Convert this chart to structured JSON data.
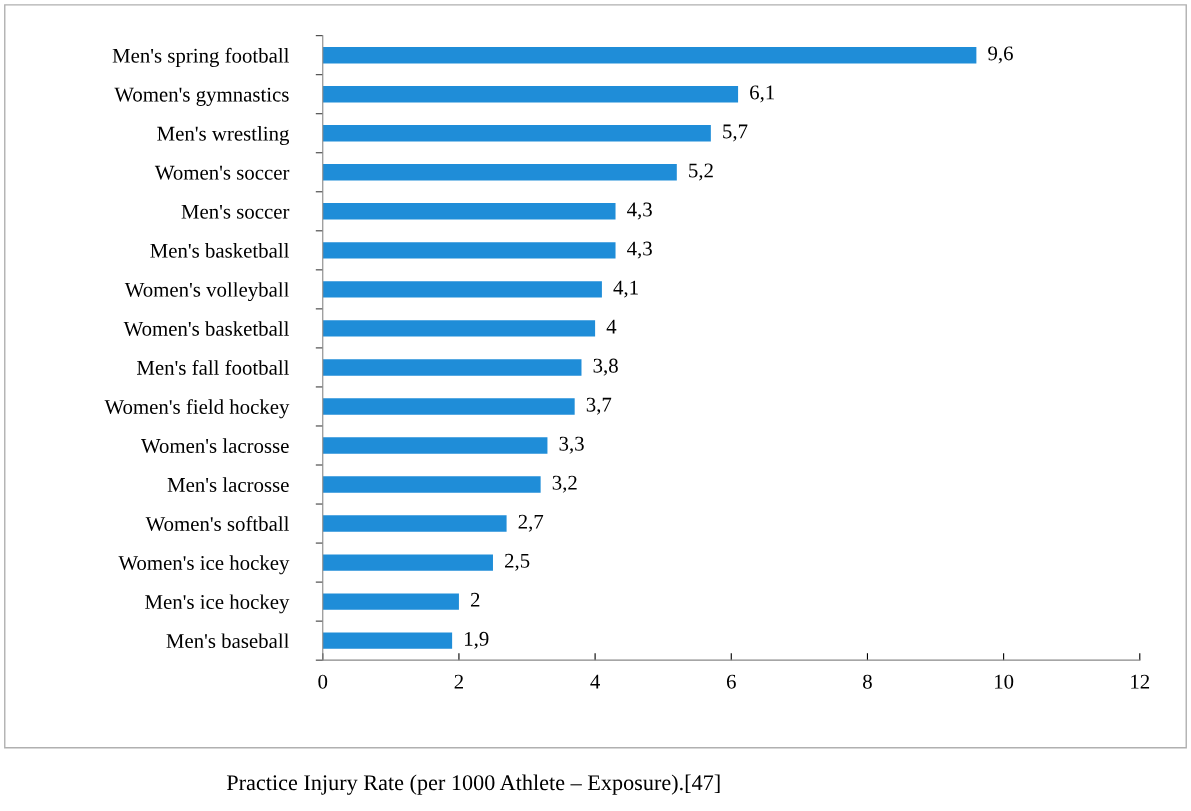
{
  "chart_data": {
    "type": "bar",
    "orientation": "horizontal",
    "categories": [
      "Men's spring football",
      "Women's gymnastics",
      "Men's wrestling",
      "Women's soccer",
      "Men's soccer",
      "Men's basketball",
      "Women's volleyball",
      "Women's basketball",
      "Men's fall football",
      "Women's field hockey",
      "Women's lacrosse",
      "Men's lacrosse",
      "Women's softball",
      "Women's ice hockey",
      "Men's ice hockey",
      "Men's baseball"
    ],
    "values": [
      9.6,
      6.1,
      5.7,
      5.2,
      4.3,
      4.3,
      4.1,
      4,
      3.8,
      3.7,
      3.3,
      3.2,
      2.7,
      2.5,
      2,
      1.9
    ],
    "value_labels": [
      "9,6",
      "6,1",
      "5,7",
      "5,2",
      "4,3",
      "4,3",
      "4,1",
      "4",
      "3,8",
      "3,7",
      "3,3",
      "3,2",
      "2,7",
      "2,5",
      "2",
      "1,9"
    ],
    "color": "#1f8dd8",
    "xlim": [
      0,
      12
    ],
    "xticks": [
      0,
      2,
      4,
      6,
      8,
      10,
      12
    ],
    "grid": false,
    "annotations": [
      "Practice Injury Rate (per 1000 Athlete – Exposure).[47]"
    ]
  }
}
